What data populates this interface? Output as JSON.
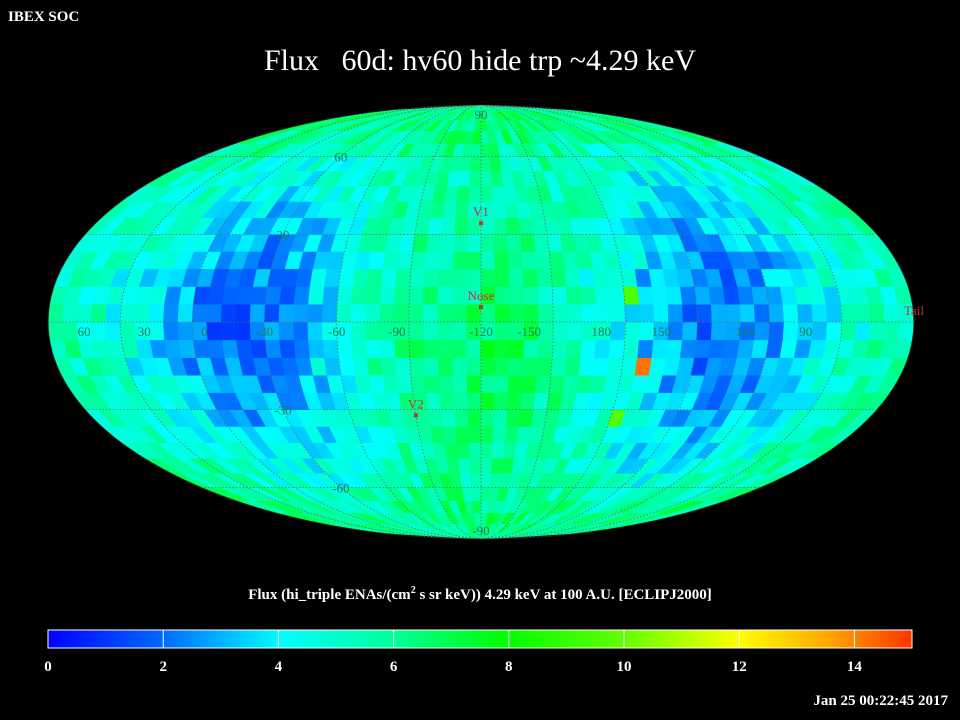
{
  "header": {
    "organization": "IBEX SOC",
    "title": "Flux   60d: hv60 hide trp ~4.29 keV"
  },
  "map": {
    "projection": "Mollweide (ecliptic)",
    "grid_color": "#6a6a6a",
    "label_color": "#1f7a5a",
    "marker_color": "#c8302c",
    "lat_labels": [
      {
        "text": "90",
        "lat": 90
      },
      {
        "text": "60",
        "lat": 60
      },
      {
        "text": "30",
        "lat": 30
      },
      {
        "text": "-30",
        "lat": -30
      },
      {
        "text": "-60",
        "lat": -60
      },
      {
        "text": "-90",
        "lat": -90
      }
    ],
    "lon_labels": [
      "60",
      "30",
      "0",
      "-30",
      "-60",
      "-90",
      "-120",
      "-150",
      "180",
      "150",
      "120",
      "90"
    ],
    "markers": [
      {
        "name": "V1",
        "lon_offset": 0,
        "lat": 34
      },
      {
        "name": "Nose",
        "lon_offset": 0,
        "lat": 5
      },
      {
        "name": "V2",
        "lon_offset": -30,
        "lat": -32
      },
      {
        "name": "Tail",
        "lon_offset": 180,
        "lat": 5
      }
    ],
    "hotspots": [
      {
        "desc": "orange pixel",
        "color": "#ff6600"
      },
      {
        "desc": "yellow-green pixels",
        "color": "#80ff00"
      }
    ]
  },
  "colorbar": {
    "title_prefix": "Flux (hi_triple ENAs/(cm",
    "title_sup": "2",
    "title_suffix": " s sr keV))  4.29 keV at 100 A.U. [ECLIPJ2000]",
    "min": 0,
    "max": 15,
    "tick_labels": [
      "0",
      "2",
      "4",
      "6",
      "8",
      "10",
      "12",
      "14"
    ],
    "tick_values": [
      0,
      2,
      4,
      6,
      8,
      10,
      12,
      14
    ]
  },
  "footer": {
    "timestamp": "Jan 25 00:22:45 2017"
  }
}
